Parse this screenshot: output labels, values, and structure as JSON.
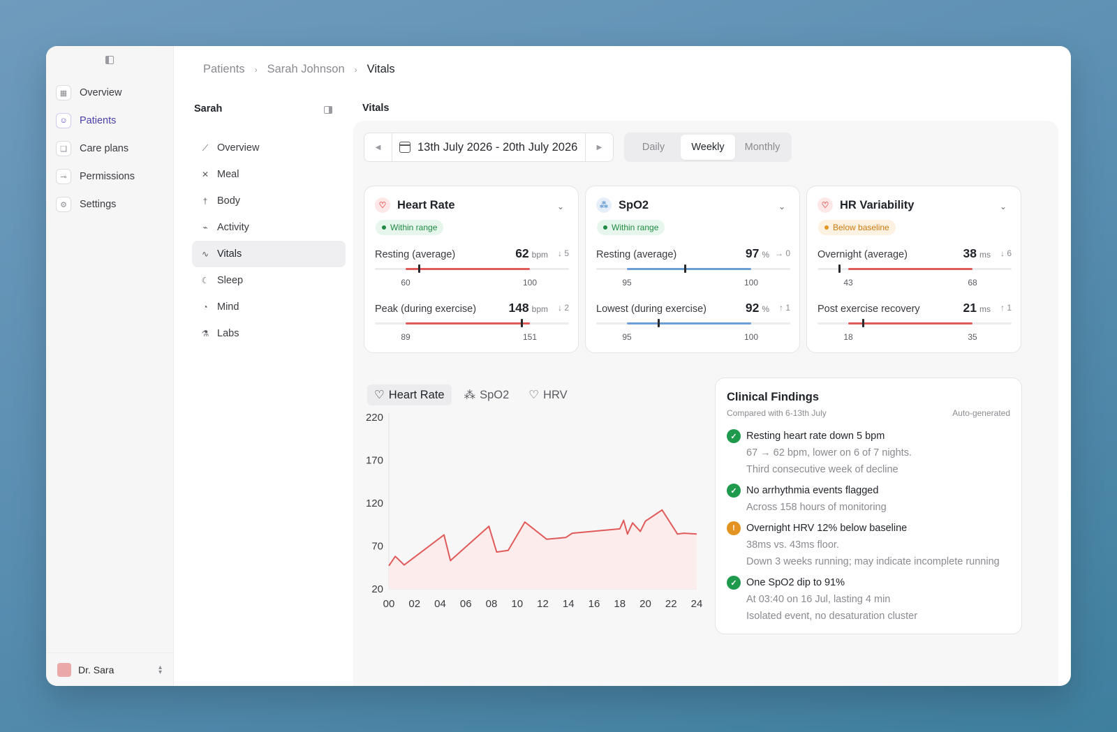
{
  "sidebar": {
    "items": [
      {
        "label": "Overview",
        "icon": "grid-icon"
      },
      {
        "label": "Patients",
        "icon": "users-icon",
        "active": true
      },
      {
        "label": "Care plans",
        "icon": "clipboard-icon"
      },
      {
        "label": "Permissions",
        "icon": "key-icon"
      },
      {
        "label": "Settings",
        "icon": "gear-icon"
      }
    ],
    "user": "Dr. Sara"
  },
  "breadcrumb": [
    "Patients",
    "Sarah Johnson",
    "Vitals"
  ],
  "patient_nav": {
    "title": "Sarah",
    "items": [
      "Overview",
      "Meal",
      "Body",
      "Activity",
      "Vitals",
      "Sleep",
      "Mind",
      "Labs"
    ],
    "active": "Vitals"
  },
  "main": {
    "title": "Vitals",
    "date_range": "13th July 2026 - 20th July 2026",
    "periods": [
      "Daily",
      "Weekly",
      "Monthly"
    ],
    "active_period": "Weekly"
  },
  "cards": [
    {
      "title": "Heart Rate",
      "badge": "Within range",
      "status": "ok",
      "accent": "#e05a5a",
      "metrics": [
        {
          "label": "Resting (average)",
          "value": "62",
          "unit": "bpm",
          "delta": "↓ 5",
          "min": "60",
          "max": "100",
          "marker": 0.08
        },
        {
          "label": "Peak (during exercise)",
          "value": "148",
          "unit": "bpm",
          "delta": "↓ 2",
          "min": "89",
          "max": "151",
          "marker": 0.94
        }
      ]
    },
    {
      "title": "SpO2",
      "badge": "Within range",
      "status": "ok",
      "accent": "#6b9fd6",
      "metrics": [
        {
          "label": "Resting (average)",
          "value": "97",
          "unit": "%",
          "delta": "→ 0",
          "min": "95",
          "max": "100",
          "marker": 0.47
        },
        {
          "label": "Lowest (during exercise)",
          "value": "92",
          "unit": "%",
          "delta": "↑ 1",
          "min": "95",
          "max": "100",
          "marker": 0.25
        }
      ]
    },
    {
      "title": "HR Variability",
      "badge": "Below baseline",
      "status": "warn",
      "accent": "#e05a5a",
      "metrics": [
        {
          "label": "Overnight (average)",
          "value": "38",
          "unit": "ms",
          "delta": "↓ 6",
          "min": "43",
          "max": "68",
          "marker": -0.07
        },
        {
          "label": "Post exercise recovery",
          "value": "21",
          "unit": "ms",
          "delta": "↑ 1",
          "min": "18",
          "max": "35",
          "marker": 0.12
        }
      ]
    }
  ],
  "chart_tabs": [
    "Heart Rate",
    "SpO2",
    "HRV"
  ],
  "chart_data": {
    "type": "area",
    "x": [
      0,
      0.5,
      1.2,
      4.3,
      4.8,
      7.8,
      8.4,
      9.3,
      10.6,
      12.3,
      13.8,
      14.3,
      18.0,
      18.3,
      18.6,
      19.0,
      19.6,
      20.0,
      20.8,
      21.3,
      22.5,
      23.0,
      24.0
    ],
    "series": [
      {
        "values": [
          47,
          58,
          48,
          83,
          53,
          93,
          63,
          65,
          98,
          78,
          80,
          85,
          90,
          100,
          84,
          97,
          87,
          99,
          107,
          112,
          84,
          85,
          84
        ]
      }
    ],
    "xticks": [
      "00",
      "02",
      "04",
      "06",
      "08",
      "10",
      "12",
      "14",
      "16",
      "18",
      "20",
      "22",
      "24"
    ],
    "yticks": [
      "220",
      "170",
      "120",
      "70",
      "20"
    ],
    "ylim": [
      20,
      220
    ],
    "xlim": [
      0,
      24
    ],
    "color": "#e05a5a",
    "fill": "#fdecec"
  },
  "findings": {
    "title": "Clinical Findings",
    "subtitle": "Compared with 6-13th July",
    "tag": "Auto-generated",
    "items": [
      {
        "status": "ok",
        "title": "Resting heart rate down 5 bpm",
        "lines": [
          "67 → 62 bpm, lower on 6 of 7 nights.",
          "Third consecutive week of decline"
        ]
      },
      {
        "status": "ok",
        "title": "No arrhythmia events flagged",
        "lines": [
          "Across 158 hours of monitoring"
        ]
      },
      {
        "status": "warn",
        "title": "Overnight HRV 12% below baseline",
        "lines": [
          "38ms vs. 43ms floor.",
          "Down 3 weeks running; may indicate incomplete running"
        ]
      },
      {
        "status": "ok",
        "title": "One SpO2 dip to 91%",
        "lines": [
          "At 03:40 on 16 Jul, lasting 4 min",
          "Isolated event, no desaturation cluster"
        ]
      }
    ]
  }
}
